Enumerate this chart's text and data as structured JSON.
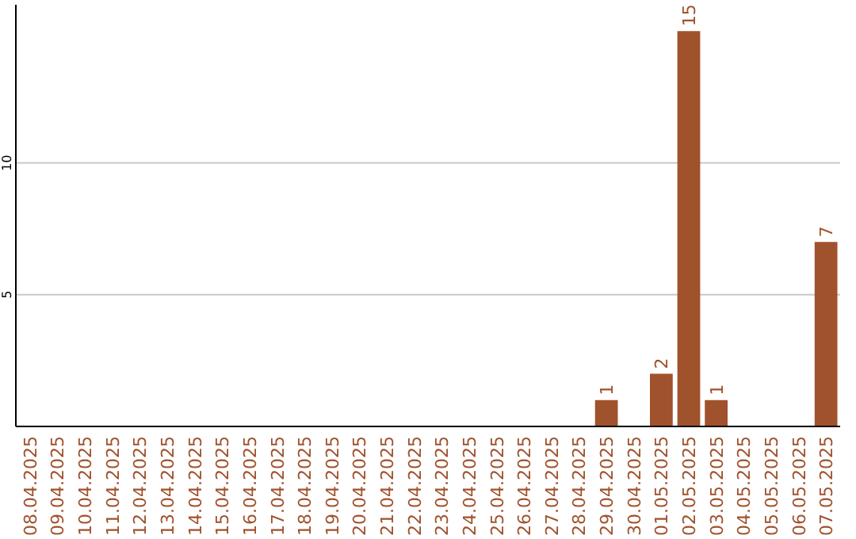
{
  "chart_data": {
    "type": "bar",
    "categories": [
      "08.04.2025",
      "09.04.2025",
      "10.04.2025",
      "11.04.2025",
      "12.04.2025",
      "13.04.2025",
      "14.04.2025",
      "15.04.2025",
      "16.04.2025",
      "17.04.2025",
      "18.04.2025",
      "19.04.2025",
      "20.04.2025",
      "21.04.2025",
      "22.04.2025",
      "23.04.2025",
      "24.04.2025",
      "25.04.2025",
      "26.04.2025",
      "27.04.2025",
      "28.04.2025",
      "29.04.2025",
      "30.04.2025",
      "01.05.2025",
      "02.05.2025",
      "03.05.2025",
      "04.05.2025",
      "05.05.2025",
      "06.05.2025",
      "07.05.2025"
    ],
    "values": [
      0,
      0,
      0,
      0,
      0,
      0,
      0,
      0,
      0,
      0,
      0,
      0,
      0,
      0,
      0,
      0,
      0,
      0,
      0,
      0,
      0,
      1,
      0,
      2,
      15,
      1,
      0,
      0,
      0,
      7
    ],
    "value_labels": [
      null,
      null,
      null,
      null,
      null,
      null,
      null,
      null,
      null,
      null,
      null,
      null,
      null,
      null,
      null,
      null,
      null,
      null,
      null,
      null,
      null,
      "1",
      null,
      "2",
      "15",
      "1",
      null,
      null,
      null,
      "7"
    ],
    "color": "#a0522d",
    "ylim": [
      0,
      16
    ],
    "yticks": [
      5,
      10
    ],
    "grid": "y"
  }
}
